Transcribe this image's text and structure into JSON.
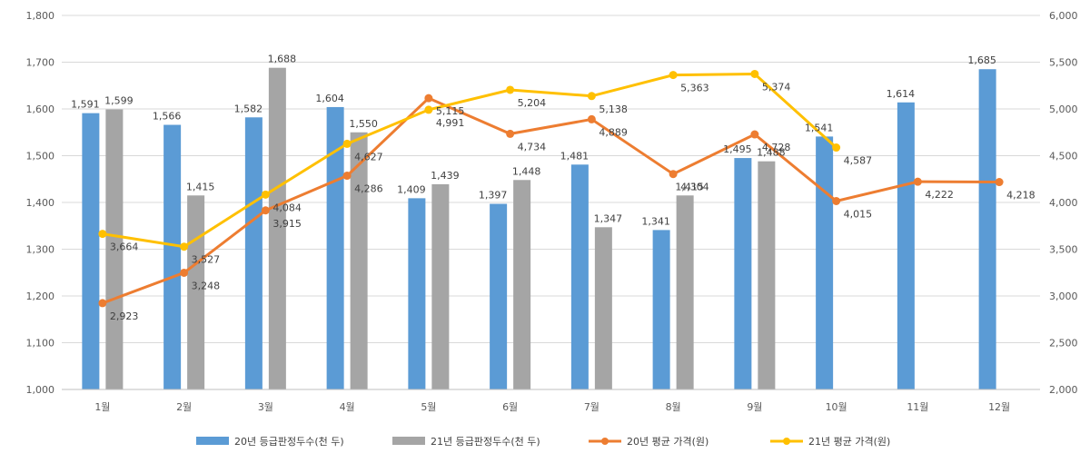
{
  "chart_data": {
    "type": "bar",
    "categories": [
      "1월",
      "2월",
      "3월",
      "4월",
      "5월",
      "6월",
      "7월",
      "8월",
      "9월",
      "10월",
      "11월",
      "12월"
    ],
    "y_left": {
      "min": 1000,
      "max": 1800,
      "step": 100,
      "ticks": [
        "1,000",
        "1,100",
        "1,200",
        "1,300",
        "1,400",
        "1,500",
        "1,600",
        "1,700",
        "1,800"
      ]
    },
    "y_right": {
      "min": 2000,
      "max": 6000,
      "step": 500,
      "ticks": [
        "2,000",
        "2,500",
        "3,000",
        "3,500",
        "4,000",
        "4,500",
        "5,000",
        "5,500",
        "6,000"
      ]
    },
    "grid": true,
    "legend_position": "bottom",
    "series": [
      {
        "name": "20년 등급판정두수(천 두)",
        "kind": "bar",
        "axis": "left",
        "color": "#5b9bd5",
        "values": [
          1591,
          1566,
          1582,
          1604,
          1409,
          1397,
          1481,
          1341,
          1495,
          1541,
          1614,
          1685
        ],
        "labels": [
          "1,591",
          "1,566",
          "1,582",
          "1,604",
          "1,409",
          "1,397",
          "1,481",
          "1,341",
          "1,495",
          "1,541",
          "1,614",
          "1,685"
        ]
      },
      {
        "name": "21년 등급판정두수(천 두)",
        "kind": "bar",
        "axis": "left",
        "color": "#a5a5a5",
        "values": [
          1599,
          1415,
          1688,
          1550,
          1439,
          1448,
          1347,
          1415,
          1488,
          null,
          null,
          null
        ],
        "labels": [
          "1,599",
          "1,415",
          "1,688",
          "1,550",
          "1,439",
          "1,448",
          "1,347",
          "1,415",
          "1,488",
          "",
          "",
          ""
        ]
      },
      {
        "name": "20년 평균 가격(원)",
        "kind": "line",
        "axis": "right",
        "color": "#ed7d31",
        "values": [
          2923,
          3248,
          3915,
          4286,
          5115,
          4734,
          4889,
          4304,
          4728,
          4015,
          4222,
          4218
        ],
        "labels": [
          "2,923",
          "3,248",
          "3,915",
          "4,286",
          "5,115",
          "4,734",
          "4,889",
          "4,304",
          "4,728",
          "4,015",
          "4,222",
          "4,218"
        ]
      },
      {
        "name": "21년 평균 가격(원)",
        "kind": "line",
        "axis": "right",
        "color": "#ffc000",
        "values": [
          3664,
          3527,
          4084,
          4627,
          4991,
          5204,
          5138,
          5363,
          5374,
          4587,
          null,
          null
        ],
        "labels": [
          "3,664",
          "3,527",
          "4,084",
          "4,627",
          "4,991",
          "5,204",
          "5,138",
          "5,363",
          "5,374",
          "4,587",
          "",
          ""
        ]
      }
    ]
  }
}
